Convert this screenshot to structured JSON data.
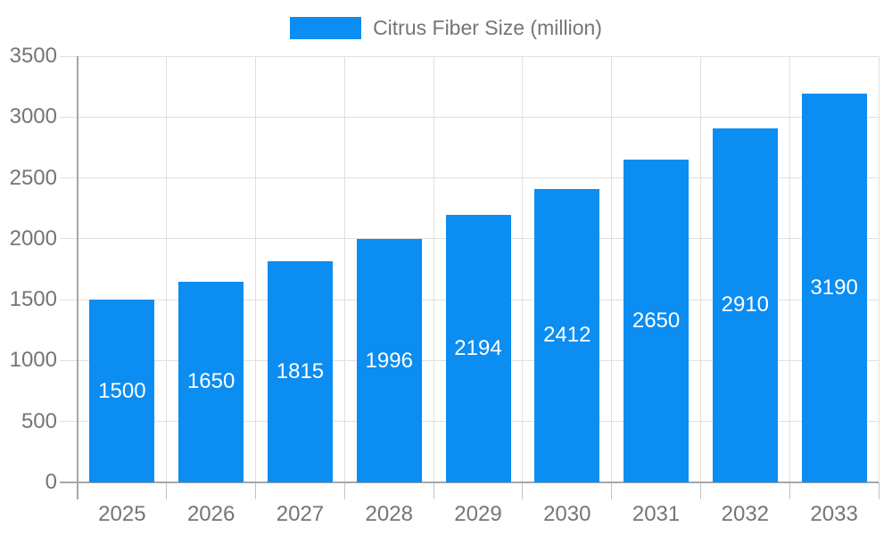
{
  "legend": {
    "label": "Citrus Fiber Size (million)"
  },
  "chart_data": {
    "type": "bar",
    "title": "",
    "categories": [
      "2025",
      "2026",
      "2027",
      "2028",
      "2029",
      "2030",
      "2031",
      "2032",
      "2033"
    ],
    "series": [
      {
        "name": "Citrus Fiber Size (million)",
        "values": [
          1500,
          1650,
          1815,
          1996,
          2194,
          2412,
          2650,
          2910,
          3190
        ]
      }
    ],
    "xlabel": "",
    "ylabel": "",
    "ylim": [
      0,
      3500
    ],
    "y_ticks": [
      0,
      500,
      1000,
      1500,
      2000,
      2500,
      3000,
      3500
    ],
    "grid": true,
    "legend_position": "top",
    "value_labels": "inside-center"
  },
  "colors": {
    "bar": "#0b8df2",
    "value_label": "#ffffff",
    "axis_text": "#757575",
    "gridline": "#e0e0e0",
    "axis_line": "#a7a7a7",
    "tick": "#c2c2c2",
    "background": "#ffffff"
  }
}
